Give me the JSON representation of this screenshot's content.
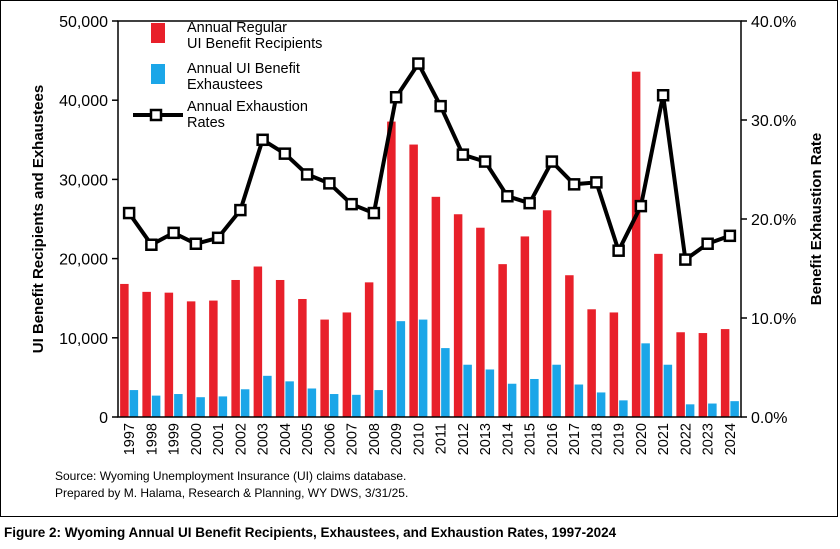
{
  "chart_data": {
    "type": "bar",
    "categories": [
      "1997",
      "1998",
      "1999",
      "2000",
      "2001",
      "2002",
      "2003",
      "2004",
      "2005",
      "2006",
      "2007",
      "2008",
      "2009",
      "2010",
      "2011",
      "2012",
      "2013",
      "2014",
      "2015",
      "2016",
      "2017",
      "2018",
      "2019",
      "2020",
      "2021",
      "2022",
      "2023",
      "2024"
    ],
    "series": [
      {
        "name": "Annual Regular\nUI Benefit Recipients",
        "type": "bar",
        "axis": "left",
        "color": "#e8202a",
        "values": [
          16800,
          15800,
          15700,
          14600,
          14700,
          17300,
          19000,
          17300,
          14900,
          12300,
          13200,
          17000,
          37300,
          34400,
          27800,
          25600,
          23900,
          19300,
          22800,
          26100,
          17900,
          13600,
          13200,
          43600,
          20600,
          10700,
          10600,
          11100
        ]
      },
      {
        "name": "Annual UI Benefit\nExhaustees",
        "type": "bar",
        "axis": "left",
        "color": "#1ba6e8",
        "values": [
          3400,
          2700,
          2900,
          2500,
          2600,
          3500,
          5200,
          4500,
          3600,
          2900,
          2800,
          3400,
          12100,
          12300,
          8700,
          6600,
          6000,
          4200,
          4800,
          6600,
          4100,
          3100,
          2100,
          9300,
          6600,
          1600,
          1700,
          2000
        ]
      },
      {
        "name": "Annual Exhaustion\nRates",
        "type": "line",
        "axis": "right",
        "color": "#000000",
        "values": [
          20.6,
          17.4,
          18.6,
          17.5,
          18.1,
          20.9,
          28.0,
          26.6,
          24.5,
          23.6,
          21.5,
          20.6,
          32.3,
          35.7,
          31.4,
          26.5,
          25.8,
          22.3,
          21.6,
          25.8,
          23.5,
          23.7,
          16.8,
          21.3,
          32.5,
          15.9,
          17.5,
          18.3
        ]
      }
    ],
    "yleft": {
      "label": "UI Benefit Recipients and Exhaustees",
      "lim": [
        0,
        50000
      ],
      "ticks": [
        0,
        10000,
        20000,
        30000,
        40000,
        50000
      ],
      "tick_labels": [
        "0",
        "10,000",
        "20,000",
        "30,000",
        "40,000",
        "50,000"
      ]
    },
    "yright": {
      "label": "Benefit Exhaustion Rate",
      "lim": [
        0,
        40
      ],
      "ticks": [
        0,
        10,
        20,
        30,
        40
      ],
      "tick_labels": [
        "0.0%",
        "10.0%",
        "20.0%",
        "30.0%",
        "40.0%"
      ]
    },
    "xlabel": "",
    "grid": false,
    "legend": "top-left"
  },
  "source_lines": [
    "Source: Wyoming Unemployment Insurance (UI) claims database.",
    "Prepared by M. Halama, Research & Planning, WY DWS, 3/31/25."
  ],
  "caption": "Figure 2: Wyoming Annual UI Benefit Recipients, Exhaustees, and Exhaustion Rates, 1997-2024"
}
